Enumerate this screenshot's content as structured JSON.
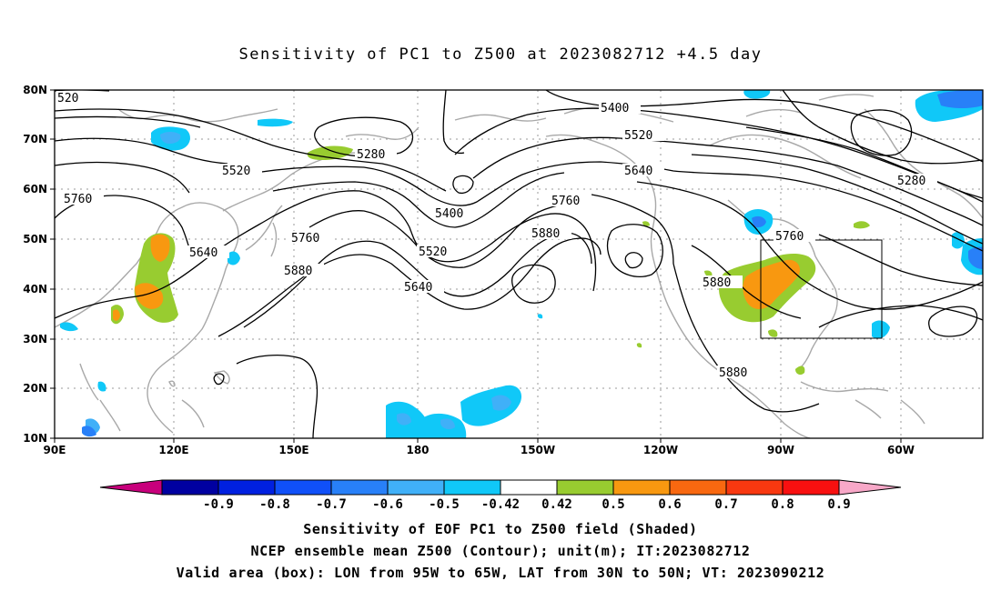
{
  "title": "Sensitivity of PC1 to Z500 at 2023082712 +4.5 day",
  "lat_labels": [
    "80N",
    "70N",
    "60N",
    "50N",
    "40N",
    "30N",
    "20N",
    "10N"
  ],
  "lon_labels": [
    "90E",
    "120E",
    "150E",
    "180",
    "150W",
    "120W",
    "90W",
    "60W"
  ],
  "contour_labels": [
    {
      "text": "520"
    },
    {
      "text": "5280"
    },
    {
      "text": "5400"
    },
    {
      "text": "5520"
    },
    {
      "text": "5520"
    },
    {
      "text": "5640"
    },
    {
      "text": "5760"
    },
    {
      "text": "5280"
    },
    {
      "text": "5400"
    },
    {
      "text": "5760"
    },
    {
      "text": "5640"
    },
    {
      "text": "5760"
    },
    {
      "text": "5880"
    },
    {
      "text": "5520"
    },
    {
      "text": "5880"
    },
    {
      "text": "5640"
    },
    {
      "text": "5760"
    },
    {
      "text": "5880"
    },
    {
      "text": "5880"
    }
  ],
  "colorbar": {
    "labels": [
      "-0.9",
      "-0.8",
      "-0.7",
      "-0.6",
      "-0.5",
      "-0.42",
      "0.42",
      "0.5",
      "0.6",
      "0.7",
      "0.8",
      "0.9"
    ],
    "colors": [
      "#c8007c",
      "#0000a0",
      "#0020e0",
      "#1050f8",
      "#2880f8",
      "#40b0f8",
      "#10c8f8",
      "#ffffff",
      "#98cc30",
      "#f89810",
      "#f86810",
      "#f83810",
      "#f81010",
      "#f8a8c8"
    ]
  },
  "caption": [
    "Sensitivity of EOF PC1 to Z500 field (Shaded)",
    "NCEP ensemble mean Z500 (Contour); unit(m); IT:2023082712",
    "Valid area (box): LON from 95W to 65W, LAT from 30N to 50N; VT: 2023090212"
  ]
}
